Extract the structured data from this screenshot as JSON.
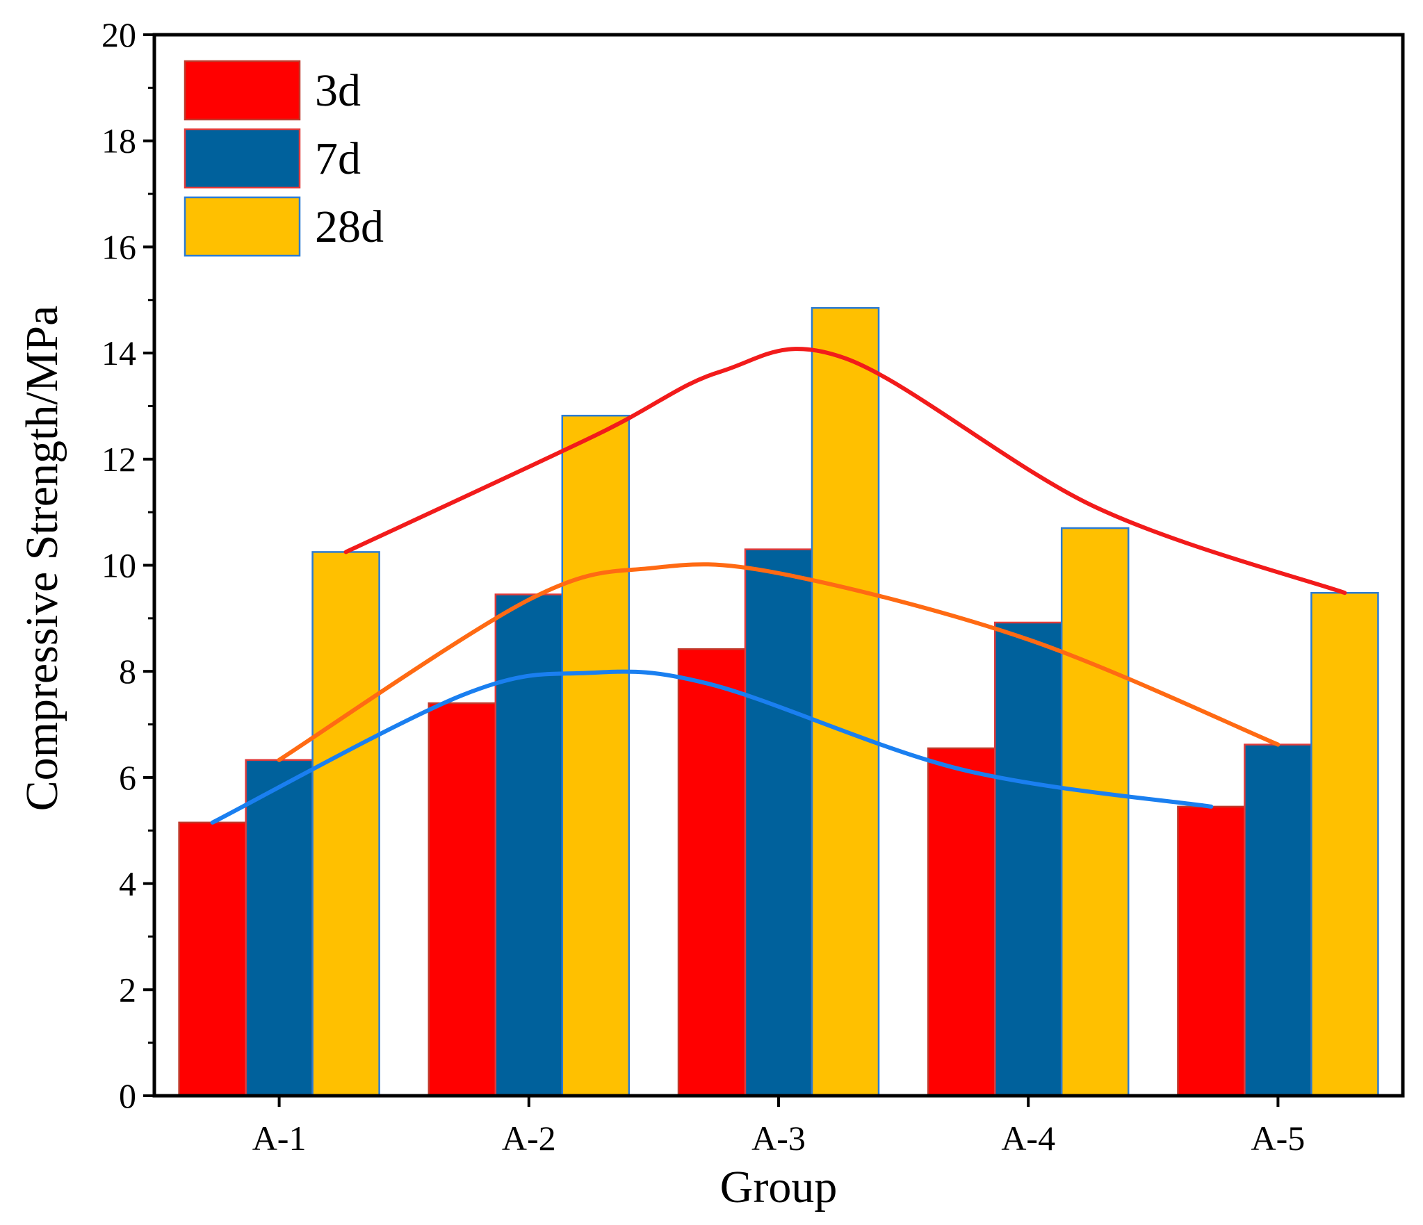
{
  "chart_data": {
    "type": "bar",
    "title": "",
    "xlabel": "Group",
    "ylabel": "Compressive Strength/MPa",
    "ylim": [
      0,
      20
    ],
    "yticks": [
      0,
      2,
      4,
      6,
      8,
      10,
      12,
      14,
      16,
      18,
      20
    ],
    "ytick_labels": [
      "0",
      "2",
      "4",
      "6",
      "8",
      "10",
      "12",
      "14",
      "16",
      "18",
      "20"
    ],
    "categories": [
      "A-1",
      "A-2",
      "A-3",
      "A-4",
      "A-5"
    ],
    "legend_position": "top-left",
    "series": [
      {
        "name": "3d",
        "values": [
          5.15,
          7.4,
          8.42,
          6.55,
          5.45
        ],
        "color": "#ff0000",
        "edge": "#c0392b"
      },
      {
        "name": "7d",
        "values": [
          6.33,
          9.45,
          10.3,
          8.92,
          6.62
        ],
        "color": "#00619c",
        "edge": "#e03b3b"
      },
      {
        "name": "28d",
        "values": [
          10.25,
          12.82,
          14.85,
          10.7,
          9.48
        ],
        "color": "#ffc000",
        "edge": "#2a7bd4"
      }
    ],
    "trend_lines": [
      {
        "series": "3d",
        "color": "#1a7ff0",
        "points": [
          [
            0,
            5.15
          ],
          [
            1,
            7.55
          ],
          [
            1.5,
            7.97
          ],
          [
            2,
            7.75
          ],
          [
            3,
            6.15
          ],
          [
            4,
            5.45
          ]
        ]
      },
      {
        "series": "7d",
        "color": "#ff6a13",
        "points": [
          [
            0,
            6.33
          ],
          [
            1,
            9.35
          ],
          [
            1.5,
            9.95
          ],
          [
            2,
            9.85
          ],
          [
            3,
            8.6
          ],
          [
            4,
            6.62
          ]
        ]
      },
      {
        "series": "28d",
        "color": "#f21b1b",
        "points": [
          [
            0,
            10.25
          ],
          [
            1,
            12.45
          ],
          [
            1.5,
            13.65
          ],
          [
            2,
            13.9
          ],
          [
            3,
            11.1
          ],
          [
            4,
            9.48
          ]
        ]
      }
    ]
  }
}
